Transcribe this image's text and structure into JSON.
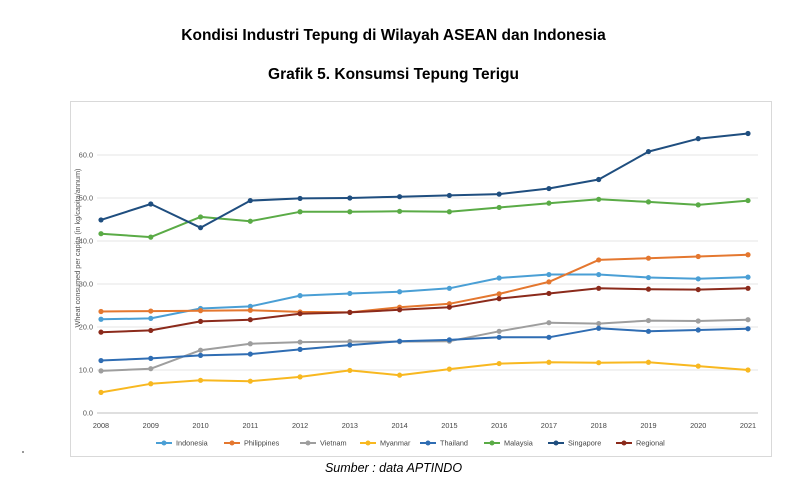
{
  "document_title": "Kondisi Industri Tepung di Wilayah ASEAN dan Indonesia",
  "source_text": "Sumber : data APTINDO",
  "chart_data": {
    "type": "line",
    "title": "Grafik 5. Konsumsi Tepung Terigu",
    "xlabel": "",
    "ylabel": "Wheat consumed per capita (in kg/capita/annum)",
    "ylim": [
      0,
      70
    ],
    "yticks": [
      0,
      10,
      20,
      30,
      40,
      50,
      60
    ],
    "ytick_labels": [
      "0.0",
      "10.0",
      "20.0",
      "30.0",
      "40.0",
      "50.0",
      "60.0"
    ],
    "grid": true,
    "legend_position": "bottom",
    "categories": [
      "2008",
      "2009",
      "2010",
      "2011",
      "2012",
      "2013",
      "2014",
      "2015",
      "2016",
      "2017",
      "2018",
      "2019",
      "2020",
      "2021"
    ],
    "series": [
      {
        "name": "Indonesia",
        "color": "#4a9fd5",
        "values": [
          21.8,
          22.0,
          24.3,
          24.8,
          27.3,
          27.8,
          28.2,
          29.0,
          31.4,
          32.2,
          32.2,
          31.5,
          31.2,
          31.6
        ]
      },
      {
        "name": "Philippines",
        "color": "#e4772f",
        "values": [
          23.6,
          23.7,
          23.8,
          23.9,
          23.5,
          23.4,
          24.6,
          25.4,
          27.7,
          30.5,
          35.6,
          36.0,
          36.4,
          36.8
        ]
      },
      {
        "name": "Vietnam",
        "color": "#9e9e9e",
        "values": [
          9.8,
          10.3,
          14.6,
          16.1,
          16.5,
          16.6,
          16.6,
          16.7,
          19.0,
          21.0,
          20.8,
          21.5,
          21.4,
          21.7
        ]
      },
      {
        "name": "Myanmar",
        "color": "#f8b820",
        "values": [
          4.8,
          6.8,
          7.6,
          7.4,
          8.4,
          9.9,
          8.8,
          10.2,
          11.5,
          11.8,
          11.7,
          11.8,
          10.9,
          10.0
        ]
      },
      {
        "name": "Thailand",
        "color": "#2f6db3",
        "values": [
          12.2,
          12.7,
          13.4,
          13.7,
          14.8,
          15.8,
          16.7,
          17.0,
          17.6,
          17.6,
          19.7,
          19.0,
          19.3,
          19.6
        ]
      },
      {
        "name": "Malaysia",
        "color": "#5aab46",
        "values": [
          41.7,
          40.9,
          45.6,
          44.6,
          46.8,
          46.8,
          46.9,
          46.8,
          47.8,
          48.8,
          49.7,
          49.1,
          48.4,
          49.4
        ]
      },
      {
        "name": "Singapore",
        "color": "#1f4e7f",
        "values": [
          44.9,
          48.6,
          43.1,
          49.4,
          49.9,
          50.0,
          50.3,
          50.6,
          50.9,
          52.2,
          54.3,
          60.8,
          63.8,
          65.0
        ]
      },
      {
        "name": "Regional",
        "color": "#8b2a1b",
        "values": [
          18.8,
          19.2,
          21.3,
          21.7,
          23.1,
          23.4,
          24.0,
          24.6,
          26.6,
          27.8,
          29.0,
          28.8,
          28.7,
          29.0
        ]
      }
    ]
  }
}
